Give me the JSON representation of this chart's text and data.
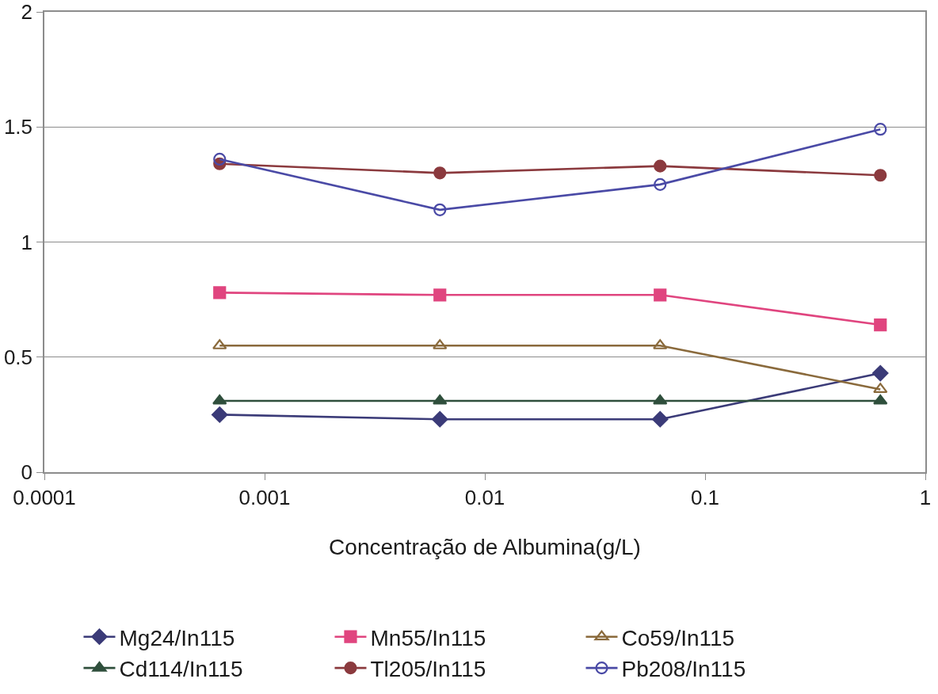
{
  "chart_data": {
    "type": "line",
    "xlabel": "Concentração de Albumina(g/L)",
    "x": [
      0.000625,
      0.00625,
      0.0625,
      0.625
    ],
    "log": "x",
    "xlim": [
      0.0001,
      1
    ],
    "xticks": [
      0.0001,
      0.001,
      0.01,
      0.1,
      1
    ],
    "ylim": [
      0,
      2
    ],
    "yticks": [
      0,
      0.5,
      1,
      1.5,
      2
    ],
    "grid": "y",
    "legend": "bottom",
    "series": [
      {
        "name": "Mg24/In115",
        "color": "#3b3b78",
        "marker": "diamond",
        "values": [
          0.25,
          0.23,
          0.23,
          0.43
        ]
      },
      {
        "name": "Mn55/In115",
        "color": "#e0457f",
        "marker": "square",
        "values": [
          0.78,
          0.77,
          0.77,
          0.64
        ]
      },
      {
        "name": "Co59/In115",
        "color": "#8a6a3c",
        "marker": "triangle-open",
        "values": [
          0.55,
          0.55,
          0.55,
          0.36
        ]
      },
      {
        "name": "Cd114/In115",
        "color": "#2f4f3c",
        "marker": "triangle",
        "values": [
          0.31,
          0.31,
          0.31,
          0.31
        ]
      },
      {
        "name": "Tl205/In115",
        "color": "#8b3a3e",
        "marker": "circle",
        "values": [
          1.34,
          1.3,
          1.33,
          1.29
        ]
      },
      {
        "name": "Pb208/In115",
        "color": "#4a4aa6",
        "marker": "circle-open",
        "values": [
          1.36,
          1.14,
          1.25,
          1.49
        ]
      }
    ]
  }
}
